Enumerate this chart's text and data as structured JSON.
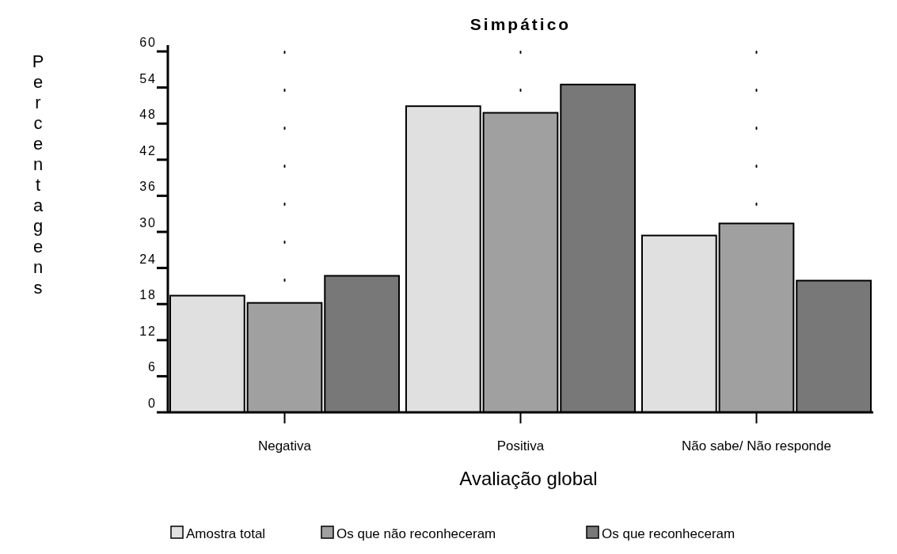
{
  "chart_data": {
    "type": "bar",
    "title": "Simpático",
    "xlabel": "Avaliação global",
    "ylabel": "Percentagens",
    "categories": [
      "Negativa",
      "Positiva",
      "Não sabe/ Não responde"
    ],
    "series": [
      {
        "name": "Amostra total",
        "color": "#e0e0e0",
        "values": [
          19.4,
          50.9,
          29.4
        ]
      },
      {
        "name": "Os que não reconheceram",
        "color": "#a0a0a0",
        "values": [
          18.2,
          49.8,
          31.4
        ]
      },
      {
        "name": "Os que reconheceram",
        "color": "#787878",
        "values": [
          22.7,
          54.5,
          21.9
        ]
      }
    ],
    "ylim": [
      0,
      60
    ],
    "yticks": [
      0,
      6,
      12,
      18,
      24,
      30,
      36,
      42,
      48,
      54,
      60
    ],
    "grid": "x",
    "legend": "bottom"
  }
}
